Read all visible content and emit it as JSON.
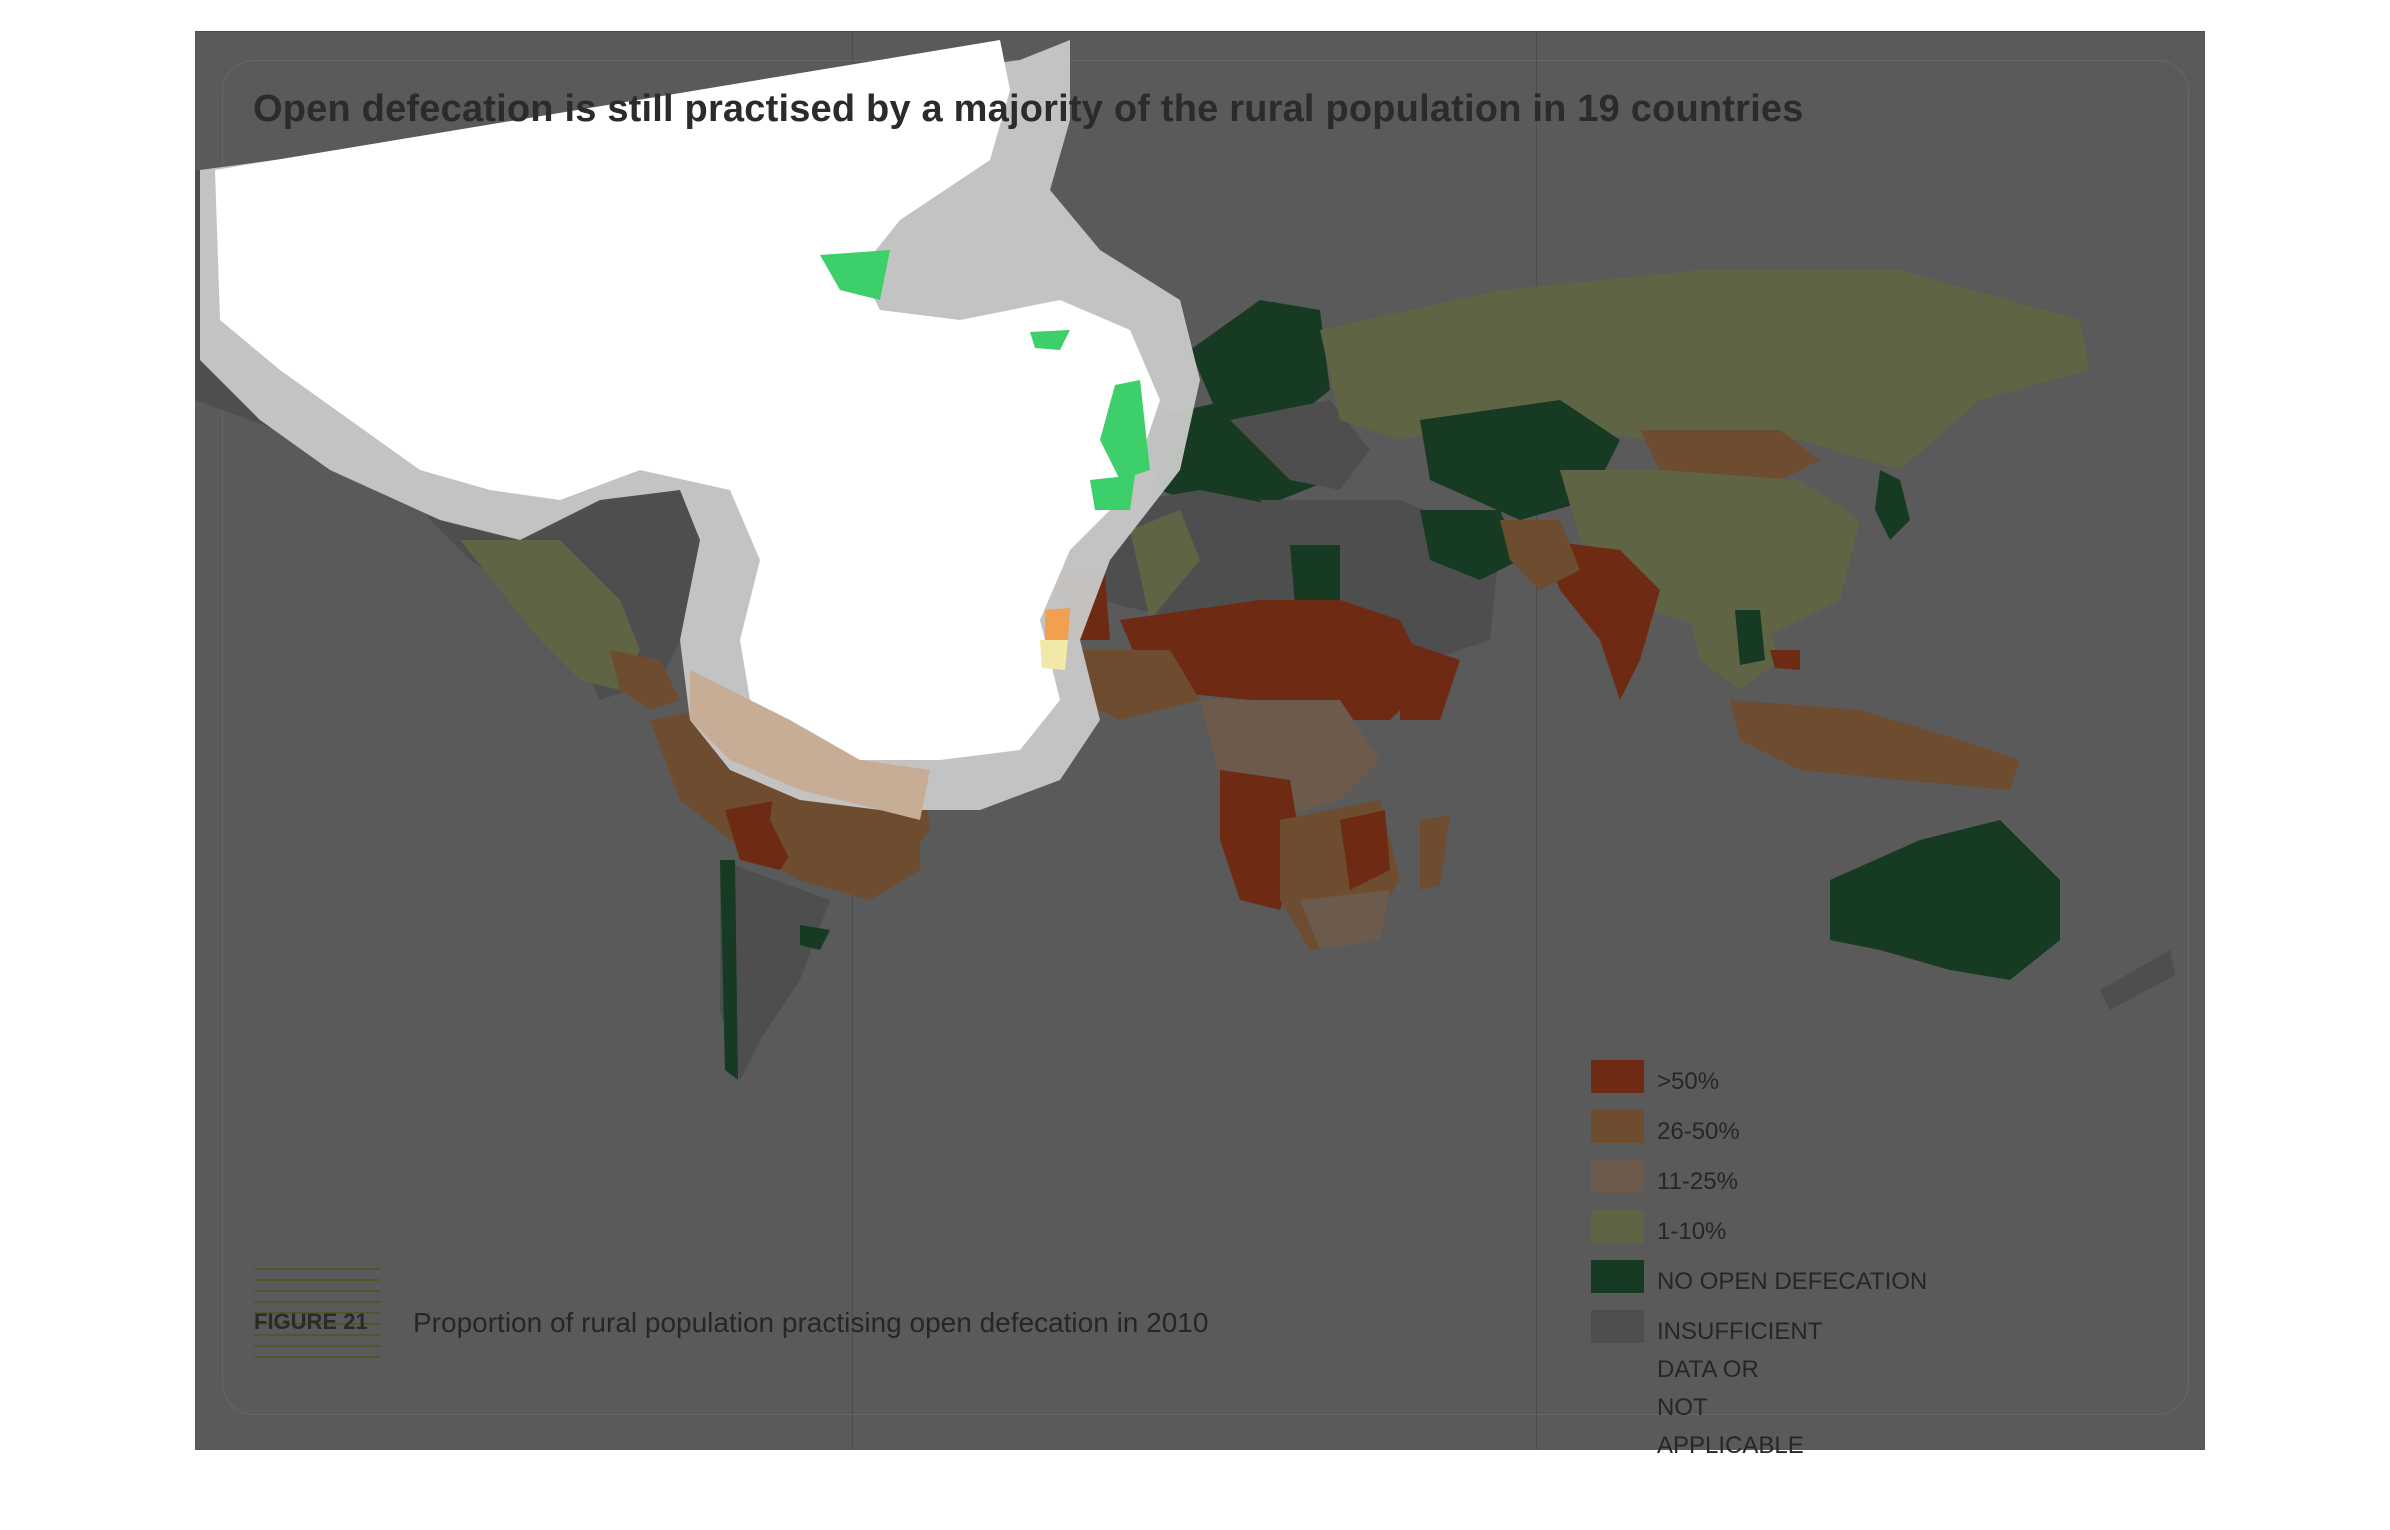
{
  "title": "Open defecation is still practised by a majority of the rural population in 19 countries",
  "figure": {
    "label": "FIGURE 21",
    "caption": "Proportion of rural population practising open defecation in 2010"
  },
  "legend": [
    {
      "label": ">50%",
      "color": "#6e2a12"
    },
    {
      "label": "26-50%",
      "color": "#6d4c30"
    },
    {
      "label": "11-25%",
      "color": "#6c5a4c"
    },
    {
      "label": "1-10%",
      "color": "#5f6444"
    },
    {
      "label": "NO OPEN DEFECATION",
      "color": "#163a22"
    },
    {
      "label": "INSUFFICIENT DATA OR\nNOT APPLICABLE",
      "color": "#4e4e4e"
    }
  ],
  "colors": {
    "background": "#5a5a5a",
    "over50": "#6e2a12",
    "p26_50": "#6d4c30",
    "p11_25": "#6c5a4c",
    "p1_10": "#5f6444",
    "none": "#163a22",
    "insufficient": "#4e4e4e",
    "glare": "#ffffff",
    "glare_edge": "#c9c9c9",
    "bright_green": "#3ccf6a"
  }
}
